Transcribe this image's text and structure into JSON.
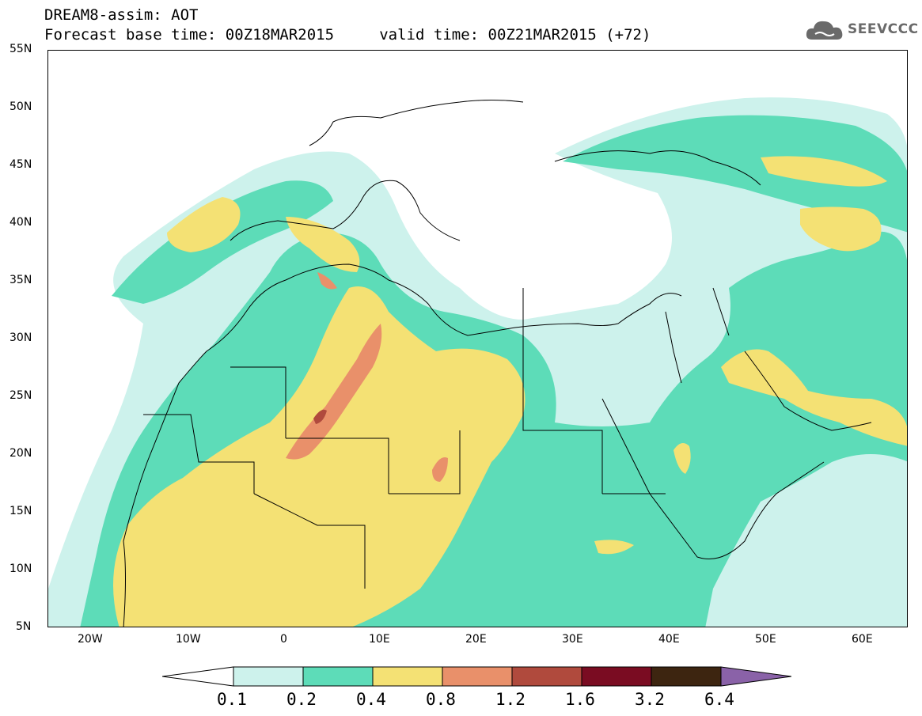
{
  "title": {
    "line1": "DREAM8-assim: AOT",
    "line2": "Forecast base time: 00Z18MAR2015     valid time: 00Z21MAR2015 (+72)"
  },
  "logo": {
    "text": "SEEVCCC"
  },
  "map": {
    "lat_labels": [
      "55N",
      "50N",
      "45N",
      "40N",
      "35N",
      "30N",
      "25N",
      "20N",
      "15N",
      "10N",
      "5N"
    ],
    "lon_labels": [
      "20W",
      "10W",
      "0",
      "10E",
      "20E",
      "30E",
      "40E",
      "50E",
      "60E"
    ]
  },
  "colorbar": {
    "labels": [
      "0.1",
      "0.2",
      "0.4",
      "0.8",
      "1.2",
      "1.6",
      "3.2",
      "6.4"
    ],
    "colors": [
      "#cdf2ec",
      "#5ddcb8",
      "#f4e174",
      "#e9906a",
      "#b04a3d",
      "#7a0c22",
      "#3d2510",
      "#8a62a8"
    ]
  }
}
